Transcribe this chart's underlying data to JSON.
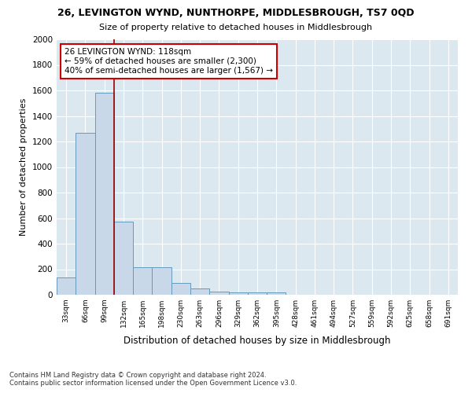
{
  "title": "26, LEVINGTON WYND, NUNTHORPE, MIDDLESBROUGH, TS7 0QD",
  "subtitle": "Size of property relative to detached houses in Middlesbrough",
  "xlabel": "Distribution of detached houses by size in Middlesbrough",
  "ylabel": "Number of detached properties",
  "categories": [
    "33sqm",
    "66sqm",
    "99sqm",
    "132sqm",
    "165sqm",
    "198sqm",
    "230sqm",
    "263sqm",
    "296sqm",
    "329sqm",
    "362sqm",
    "395sqm",
    "428sqm",
    "461sqm",
    "494sqm",
    "527sqm",
    "559sqm",
    "592sqm",
    "625sqm",
    "658sqm",
    "691sqm"
  ],
  "bar_values": [
    135,
    1270,
    1580,
    570,
    215,
    215,
    95,
    50,
    25,
    20,
    20,
    20,
    0,
    0,
    0,
    0,
    0,
    0,
    0,
    0,
    0
  ],
  "bar_color": "#c8d8e8",
  "bar_edge_color": "#6699bb",
  "background_color": "#dce8f0",
  "fig_background": "#ffffff",
  "grid_color": "#ffffff",
  "vline_color": "#990000",
  "vline_x": 2.5,
  "ylim": [
    0,
    2000
  ],
  "yticks": [
    0,
    200,
    400,
    600,
    800,
    1000,
    1200,
    1400,
    1600,
    1800,
    2000
  ],
  "annotation_title": "26 LEVINGTON WYND: 118sqm",
  "annotation_line1": "← 59% of detached houses are smaller (2,300)",
  "annotation_line2": "40% of semi-detached houses are larger (1,567) →",
  "annotation_box_color": "#ffffff",
  "annotation_border_color": "#cc0000",
  "footer_line1": "Contains HM Land Registry data © Crown copyright and database right 2024.",
  "footer_line2": "Contains public sector information licensed under the Open Government Licence v3.0."
}
